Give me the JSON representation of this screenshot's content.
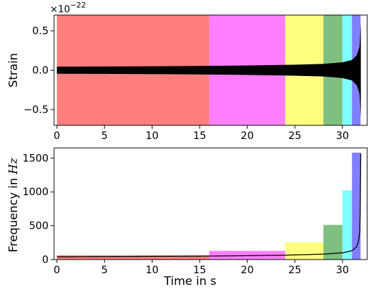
{
  "chart_data": [
    {
      "type": "area",
      "panel": "top",
      "ylabel": "Strain",
      "multiplier_base": "×10",
      "multiplier_exp": "−22",
      "xlim": [
        -0.3,
        32.6
      ],
      "ylim": [
        -0.7,
        0.7
      ],
      "xticks": [
        0,
        5,
        10,
        15,
        20,
        25,
        30
      ],
      "yticks": [
        0.5,
        0.0,
        -0.5
      ],
      "ytick_labels": [
        "0.5",
        "0.0",
        "−0.5"
      ],
      "bands": [
        {
          "x0": 0,
          "x1": 16,
          "color": "#ff7f7f"
        },
        {
          "x0": 16,
          "x1": 24,
          "color": "#ff7fff"
        },
        {
          "x0": 24,
          "x1": 28,
          "color": "#ffff7f"
        },
        {
          "x0": 28,
          "x1": 30,
          "color": "#7fbf7f"
        },
        {
          "x0": 30,
          "x1": 31,
          "color": "#7fffff"
        },
        {
          "x0": 31,
          "x1": 31.9,
          "color": "#7f7fff"
        }
      ],
      "strain_envelope": {
        "t": [
          0,
          5,
          10,
          15,
          20,
          25,
          28,
          30,
          31,
          31.5,
          31.8,
          31.93
        ],
        "amplitude": [
          0.045,
          0.047,
          0.05,
          0.054,
          0.06,
          0.07,
          0.08,
          0.1,
          0.13,
          0.19,
          0.3,
          0.6
        ],
        "color": "#000000"
      }
    },
    {
      "type": "bar",
      "panel": "bottom",
      "xlabel": "Time in s",
      "ylabel_prefix": "Frequency in ",
      "ylabel_unit": "Hz",
      "xlim": [
        -0.3,
        32.6
      ],
      "ylim": [
        0,
        1650
      ],
      "xticks": [
        0,
        5,
        10,
        15,
        20,
        25,
        30
      ],
      "yticks": [
        0,
        500,
        1000,
        1500
      ],
      "bars": [
        {
          "x0": 0,
          "x1": 16,
          "value": 64,
          "color": "#ff7f7f"
        },
        {
          "x0": 16,
          "x1": 24,
          "value": 128,
          "color": "#ff7fff"
        },
        {
          "x0": 24,
          "x1": 28,
          "value": 256,
          "color": "#ffff7f"
        },
        {
          "x0": 28,
          "x1": 30,
          "value": 512,
          "color": "#7fbf7f"
        },
        {
          "x0": 30,
          "x1": 31,
          "value": 1024,
          "color": "#7fffff"
        },
        {
          "x0": 31,
          "x1": 31.9,
          "value": 1580,
          "color": "#7f7fff"
        }
      ],
      "frequency_track": {
        "t": [
          0,
          5,
          10,
          15,
          20,
          24,
          28,
          30,
          31,
          31.5,
          31.7,
          31.85,
          31.92
        ],
        "f": [
          40,
          43,
          46,
          50,
          57,
          65,
          80,
          100,
          130,
          190,
          280,
          450,
          1570
        ],
        "color": "#000000"
      }
    }
  ]
}
